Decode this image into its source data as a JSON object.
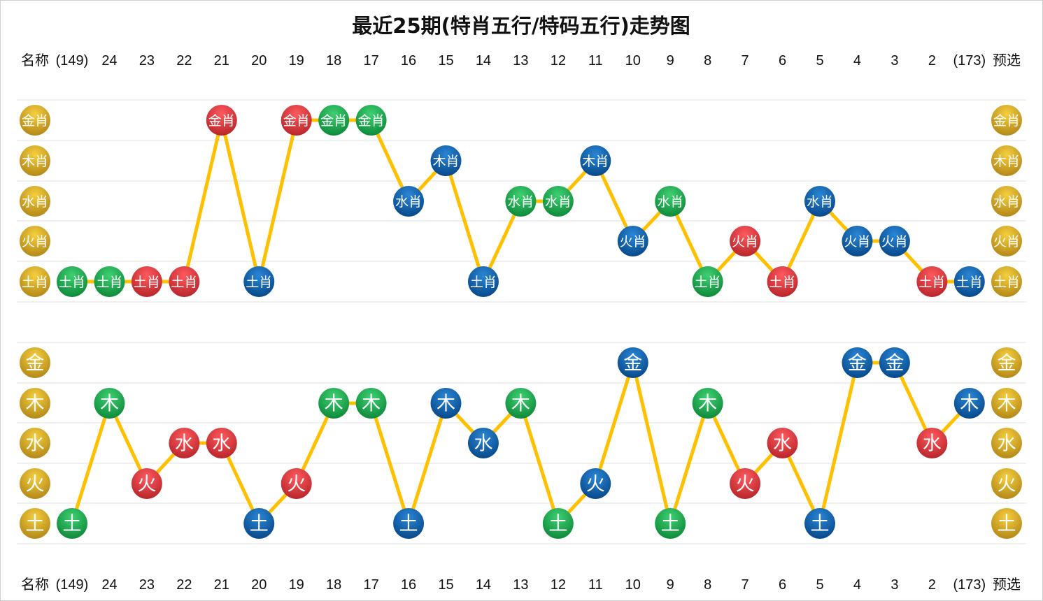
{
  "chart_data": [
    {
      "type": "line",
      "title": "最近25期(特肖五行/特码五行)走势图",
      "header_label": "名称",
      "preselect_label": "预选",
      "categories": [
        "(149)",
        "24",
        "23",
        "22",
        "21",
        "20",
        "19",
        "18",
        "17",
        "16",
        "15",
        "14",
        "13",
        "12",
        "11",
        "10",
        "9",
        "8",
        "7",
        "6",
        "5",
        "4",
        "3",
        "2",
        "(173)"
      ],
      "row_labels": [
        "金肖",
        "木肖",
        "水肖",
        "火肖",
        "土肖"
      ],
      "values": [
        "土肖",
        "土肖",
        "土肖",
        "土肖",
        "金肖",
        "土肖",
        "金肖",
        "金肖",
        "金肖",
        "水肖",
        "木肖",
        "土肖",
        "水肖",
        "水肖",
        "木肖",
        "火肖",
        "水肖",
        "土肖",
        "火肖",
        "土肖",
        "水肖",
        "火肖",
        "火肖",
        "土肖",
        "土肖"
      ],
      "colors": [
        "green",
        "green",
        "red",
        "red",
        "red",
        "blue",
        "red",
        "green",
        "green",
        "blue",
        "blue",
        "blue",
        "green",
        "green",
        "blue",
        "blue",
        "green",
        "green",
        "red",
        "red",
        "blue",
        "blue",
        "blue",
        "red",
        "blue"
      ]
    },
    {
      "type": "line",
      "categories": [
        "(149)",
        "24",
        "23",
        "22",
        "21",
        "20",
        "19",
        "18",
        "17",
        "16",
        "15",
        "14",
        "13",
        "12",
        "11",
        "10",
        "9",
        "8",
        "7",
        "6",
        "5",
        "4",
        "3",
        "2",
        "(173)"
      ],
      "row_labels": [
        "金",
        "木",
        "水",
        "火",
        "土"
      ],
      "values": [
        "土",
        "木",
        "火",
        "水",
        "水",
        "土",
        "火",
        "木",
        "木",
        "土",
        "木",
        "水",
        "木",
        "土",
        "火",
        "金",
        "土",
        "木",
        "火",
        "水",
        "土",
        "金",
        "金",
        "水",
        "木"
      ],
      "colors": [
        "green",
        "green",
        "red",
        "red",
        "red",
        "blue",
        "red",
        "green",
        "green",
        "blue",
        "blue",
        "blue",
        "green",
        "green",
        "blue",
        "blue",
        "green",
        "green",
        "red",
        "red",
        "blue",
        "blue",
        "blue",
        "red",
        "blue"
      ]
    }
  ],
  "palette": {
    "green": "#17a24a",
    "red": "#e0363c",
    "blue": "#0b62ad",
    "gold": "#dcaa22",
    "line": "#ffc000",
    "grid": "#ececec"
  }
}
